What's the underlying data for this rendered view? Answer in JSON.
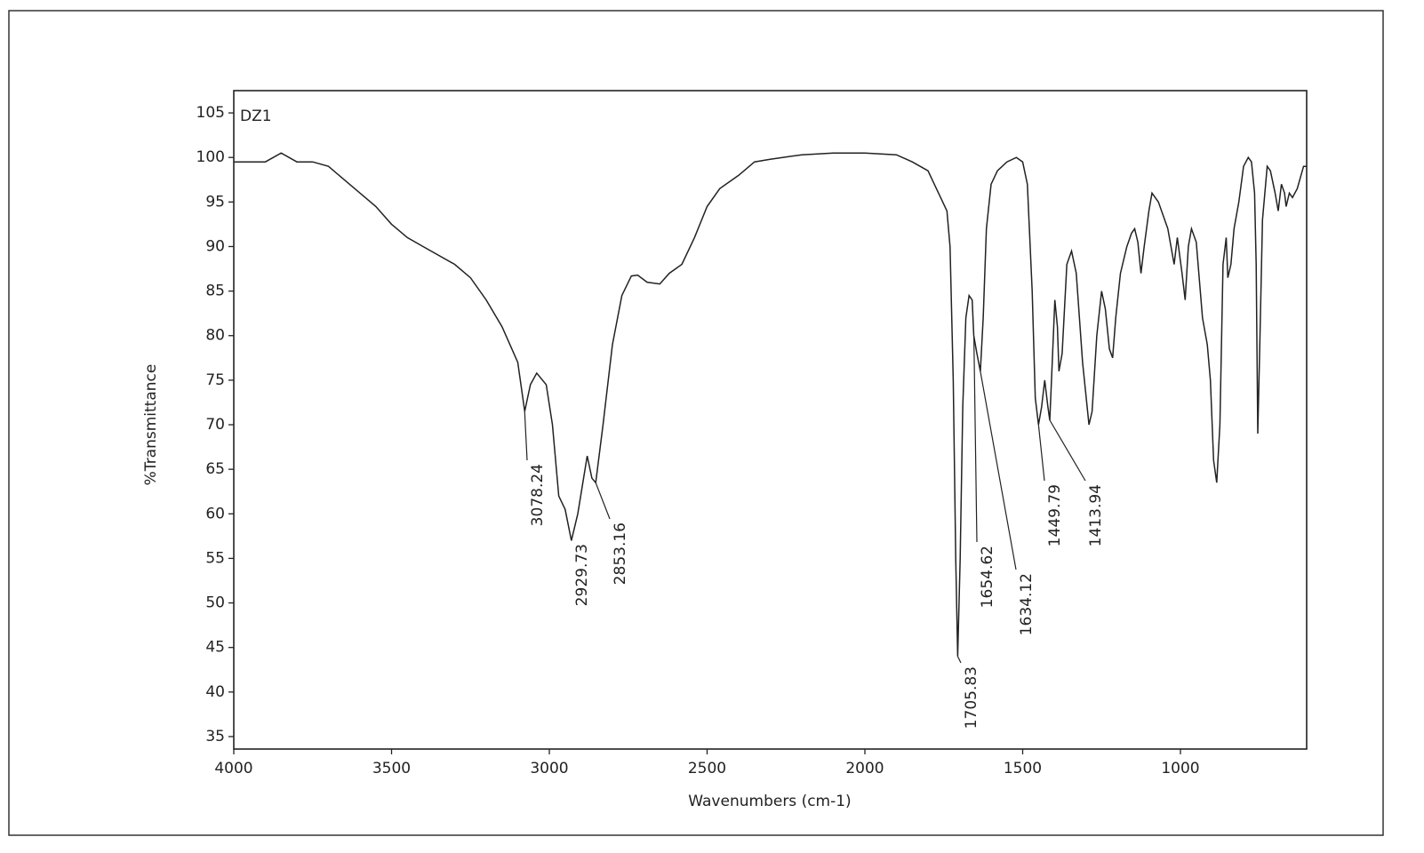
{
  "chart_data": {
    "type": "line",
    "sample_name": "DZ1",
    "x_label": "Wavenumbers (cm-1)",
    "y_label": "%Transmittance",
    "color": "#222222",
    "xlim": [
      4000,
      600
    ],
    "ylim": [
      33.6,
      107.5
    ],
    "xticks": [
      4000,
      3500,
      3000,
      2500,
      2000,
      1500,
      1000
    ],
    "yticks": [
      35,
      40,
      45,
      50,
      55,
      60,
      65,
      70,
      75,
      80,
      85,
      90,
      95,
      100,
      105
    ],
    "x": [
      4000,
      3900,
      3850,
      3800,
      3750,
      3700,
      3650,
      3600,
      3550,
      3500,
      3450,
      3400,
      3300,
      3250,
      3200,
      3150,
      3100,
      3078,
      3060,
      3040,
      3010,
      2990,
      2970,
      2950,
      2930,
      2910,
      2880,
      2865,
      2853,
      2830,
      2800,
      2770,
      2740,
      2720,
      2690,
      2650,
      2620,
      2580,
      2540,
      2500,
      2460,
      2400,
      2350,
      2300,
      2200,
      2100,
      2000,
      1900,
      1850,
      1800,
      1780,
      1760,
      1740,
      1730,
      1720,
      1712,
      1706,
      1698,
      1690,
      1680,
      1670,
      1660,
      1655,
      1645,
      1634,
      1625,
      1615,
      1600,
      1580,
      1550,
      1520,
      1500,
      1485,
      1470,
      1460,
      1450,
      1440,
      1430,
      1420,
      1414,
      1405,
      1398,
      1390,
      1385,
      1375,
      1360,
      1345,
      1330,
      1310,
      1290,
      1280,
      1265,
      1250,
      1238,
      1225,
      1215,
      1205,
      1190,
      1170,
      1155,
      1145,
      1135,
      1125,
      1115,
      1100,
      1090,
      1070,
      1055,
      1040,
      1020,
      1010,
      995,
      985,
      975,
      965,
      950,
      930,
      915,
      905,
      895,
      885,
      875,
      865,
      855,
      850,
      840,
      830,
      815,
      800,
      785,
      775,
      765,
      760,
      755,
      748,
      740,
      725,
      715,
      700,
      690,
      680,
      670,
      665,
      655,
      645,
      630,
      610,
      600
    ],
    "values": [
      99.5,
      99.5,
      100.5,
      99.5,
      99.5,
      99,
      97.5,
      96,
      94.5,
      92.5,
      91,
      90,
      88,
      86.5,
      84,
      81,
      77,
      71.5,
      74.5,
      75.8,
      74.5,
      70,
      62,
      60.5,
      57,
      60,
      66.5,
      64,
      63.5,
      70,
      79,
      84.5,
      86.7,
      86.8,
      86,
      85.8,
      87,
      88,
      91,
      94.5,
      96.5,
      98,
      99.5,
      99.8,
      100.3,
      100.5,
      100.5,
      100.3,
      99.5,
      98.5,
      97,
      95.5,
      94,
      90,
      75,
      55,
      44,
      55,
      72,
      82,
      84.5,
      84,
      80,
      78,
      76,
      82,
      92,
      97,
      98.5,
      99.5,
      100,
      99.5,
      97,
      85,
      73,
      70,
      72,
      75,
      72,
      70.5,
      78,
      84,
      81,
      76,
      78,
      88,
      89.5,
      87,
      77,
      70,
      71.5,
      80,
      85,
      83,
      78.5,
      77.5,
      82,
      87,
      90,
      91.5,
      92,
      90.5,
      87,
      90,
      94,
      96,
      95,
      93.5,
      92,
      88,
      91,
      87,
      84,
      90,
      92,
      90.5,
      82,
      79,
      75,
      66,
      63.5,
      70,
      88,
      91,
      86.5,
      88,
      92,
      95,
      99,
      100,
      99.5,
      96,
      88,
      69,
      80,
      93,
      99,
      98.5,
      96,
      94,
      97,
      96,
      94.5,
      96,
      95.5,
      96.5,
      99,
      99
    ],
    "peaks": [
      {
        "x": 3078.24,
        "y": 71.5
      },
      {
        "x": 2929.73,
        "y": 57
      },
      {
        "x": 2853.16,
        "y": 63.5
      },
      {
        "x": 1705.83,
        "y": 44
      },
      {
        "x": 1654.62,
        "y": 80
      },
      {
        "x": 1634.12,
        "y": 76
      },
      {
        "x": 1449.79,
        "y": 70
      },
      {
        "x": 1413.94,
        "y": 70.5
      }
    ]
  }
}
